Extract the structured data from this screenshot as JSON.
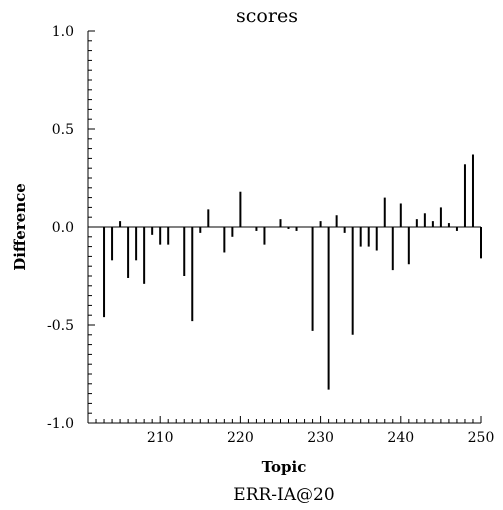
{
  "chart_data": {
    "type": "bar",
    "title": "scores",
    "xlabel": "Topic",
    "ylabel": "Difference",
    "caption": "ERR-IA@20",
    "xlim": [
      201,
      250
    ],
    "ylim": [
      -1.0,
      1.0
    ],
    "xticks": [
      210,
      220,
      230,
      240,
      250
    ],
    "yticks": [
      -1.0,
      -0.5,
      0.0,
      0.5,
      1.0
    ],
    "ytick_labels": [
      "-1.0",
      "-0.5",
      "0.0",
      "0.5",
      "1.0"
    ],
    "grid": false,
    "legend": "none",
    "colors": {
      "bar": "#000000",
      "axis": "#000000",
      "background": "#ffffff"
    },
    "x": [
      203,
      204,
      205,
      206,
      207,
      208,
      209,
      210,
      211,
      212,
      213,
      214,
      215,
      216,
      217,
      218,
      219,
      220,
      221,
      222,
      223,
      224,
      225,
      226,
      227,
      228,
      229,
      230,
      231,
      232,
      233,
      234,
      235,
      236,
      237,
      238,
      239,
      240,
      241,
      242,
      243,
      244,
      245,
      246,
      247,
      248,
      249,
      250
    ],
    "values": [
      -0.46,
      -0.17,
      0.03,
      -0.26,
      -0.17,
      -0.29,
      -0.04,
      -0.09,
      -0.09,
      0.0,
      -0.25,
      -0.48,
      -0.03,
      0.09,
      0.0,
      -0.13,
      -0.05,
      0.18,
      0.0,
      -0.02,
      -0.09,
      0.0,
      0.04,
      -0.01,
      -0.02,
      0.0,
      -0.53,
      0.03,
      -0.83,
      0.06,
      -0.03,
      -0.55,
      -0.1,
      -0.1,
      -0.12,
      0.15,
      -0.22,
      0.12,
      -0.19,
      0.04,
      0.07,
      0.03,
      0.1,
      0.02,
      -0.02,
      0.32,
      0.37,
      -0.16
    ]
  }
}
